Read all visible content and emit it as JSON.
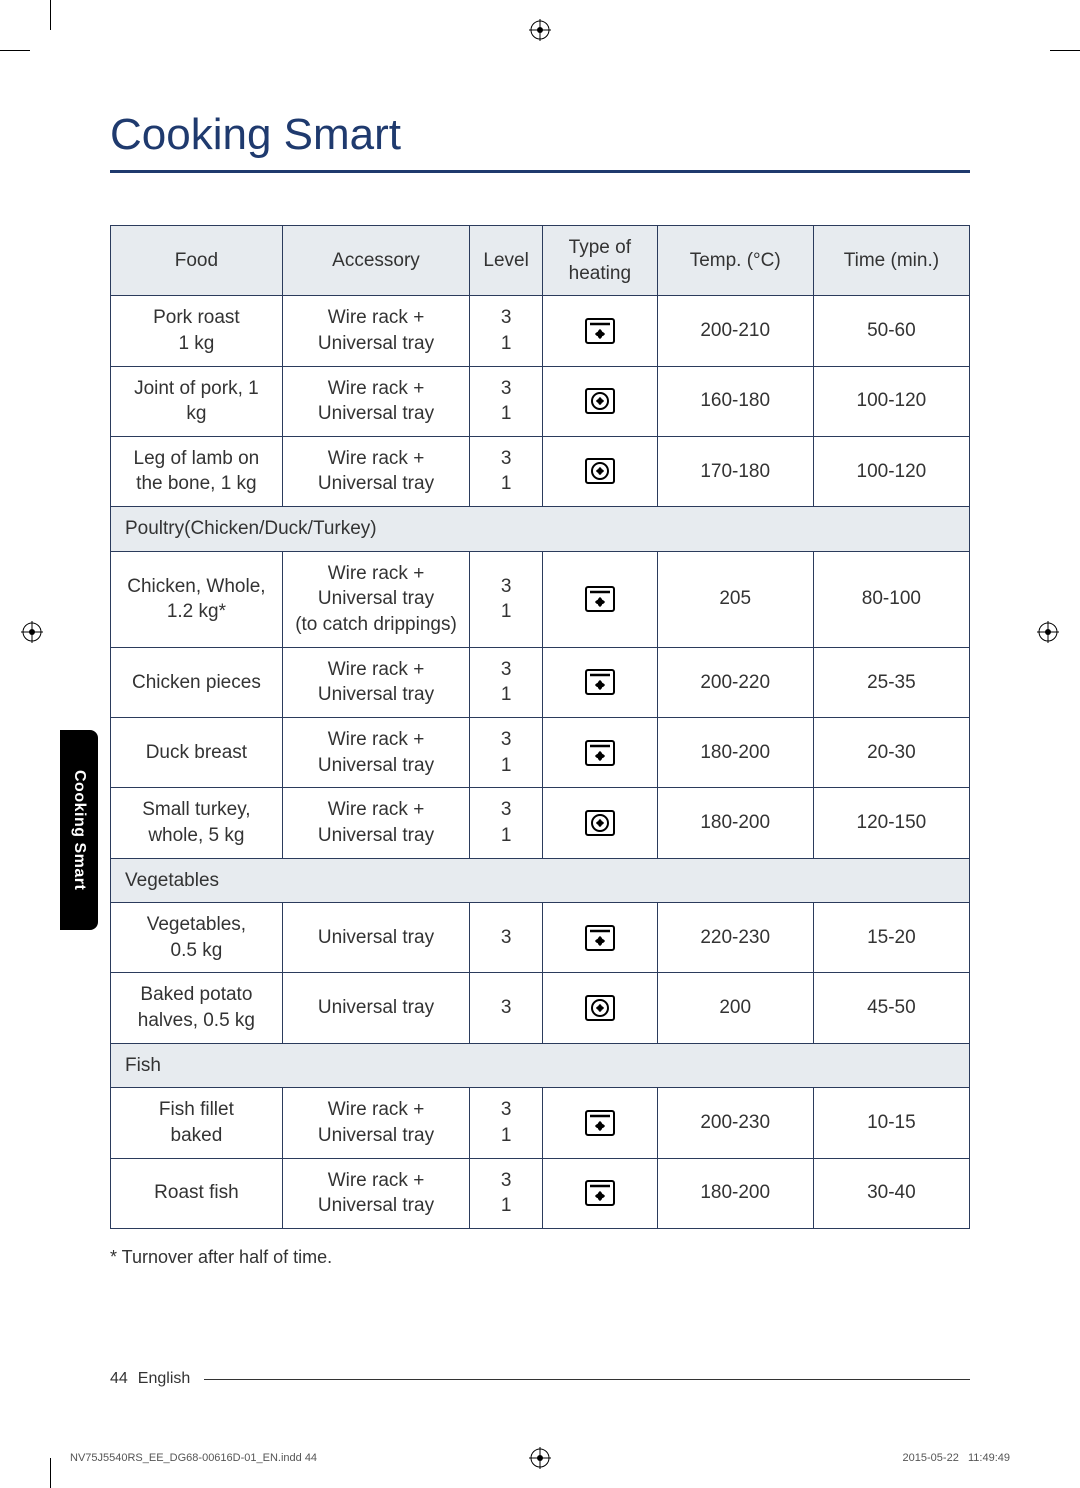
{
  "colors": {
    "title": "#1f3a6e",
    "rule": "#1f3a6e",
    "border": "#2b3b5c",
    "header_bg": "#e7ebef",
    "text": "#333333",
    "tab_bg": "#000000",
    "tab_text": "#ffffff"
  },
  "title": "Cooking Smart",
  "table": {
    "headers": [
      "Food",
      "Accessory",
      "Level",
      "Type of heating",
      "Temp. (°C)",
      "Time (min.)"
    ],
    "rows": [
      {
        "type": "data",
        "food": "Pork roast, 1 kg",
        "accessory": "Wire rack + Universal tray",
        "level": "3\n1",
        "heating": "top-fan",
        "temp": "200-210",
        "time": "50-60"
      },
      {
        "type": "data",
        "food": "Joint of pork, 1 kg",
        "accessory": "Wire rack + Universal tray",
        "level": "3\n1",
        "heating": "fan-circle",
        "temp": "160-180",
        "time": "100-120"
      },
      {
        "type": "data",
        "food": "Leg of lamb on the bone, 1 kg",
        "accessory": "Wire rack + Universal tray",
        "level": "3\n1",
        "heating": "fan-circle",
        "temp": "170-180",
        "time": "100-120"
      },
      {
        "type": "section",
        "label": "Poultry(Chicken/Duck/Turkey)"
      },
      {
        "type": "data",
        "food": "Chicken, Whole, 1.2 kg*",
        "accessory": "Wire rack + Universal tray (to catch drippings)",
        "level": "3\n1",
        "heating": "top-fan",
        "temp": "205",
        "time": "80-100"
      },
      {
        "type": "data",
        "food": "Chicken pieces",
        "accessory": "Wire rack + Universal tray",
        "level": "3\n1",
        "heating": "top-fan",
        "temp": "200-220",
        "time": "25-35"
      },
      {
        "type": "data",
        "food": "Duck breast",
        "accessory": "Wire rack + Universal tray",
        "level": "3\n1",
        "heating": "top-fan",
        "temp": "180-200",
        "time": "20-30"
      },
      {
        "type": "data",
        "food": "Small turkey, whole, 5 kg",
        "accessory": "Wire rack + Universal tray",
        "level": "3\n1",
        "heating": "fan-circle",
        "temp": "180-200",
        "time": "120-150"
      },
      {
        "type": "section",
        "label": "Vegetables"
      },
      {
        "type": "data",
        "food": "Vegetables, 0.5 kg",
        "accessory": "Universal tray",
        "level": "3",
        "heating": "top-fan",
        "temp": "220-230",
        "time": "15-20"
      },
      {
        "type": "data",
        "food": "Baked potato halves, 0.5 kg",
        "accessory": "Universal tray",
        "level": "3",
        "heating": "fan-circle",
        "temp": "200",
        "time": "45-50"
      },
      {
        "type": "section",
        "label": "Fish"
      },
      {
        "type": "data",
        "food": "Fish fillet, baked",
        "accessory": "Wire rack + Universal tray",
        "level": "3\n1",
        "heating": "top-fan",
        "temp": "200-230",
        "time": "10-15"
      },
      {
        "type": "data",
        "food": "Roast fish",
        "accessory": "Wire rack + Universal tray",
        "level": "3\n1",
        "heating": "top-fan",
        "temp": "180-200",
        "time": "30-40"
      }
    ]
  },
  "footnote": "* Turnover after half of time.",
  "side_tab": "Cooking Smart",
  "footer": {
    "page": "44",
    "lang": "English"
  },
  "print_meta": {
    "left": "NV75J5540RS_EE_DG68-00616D-01_EN.indd   44",
    "right": "2015-05-22     11:49:49"
  },
  "heating_icons": {
    "top-fan": "top-bar-with-fan",
    "fan-circle": "fan-with-ring"
  }
}
